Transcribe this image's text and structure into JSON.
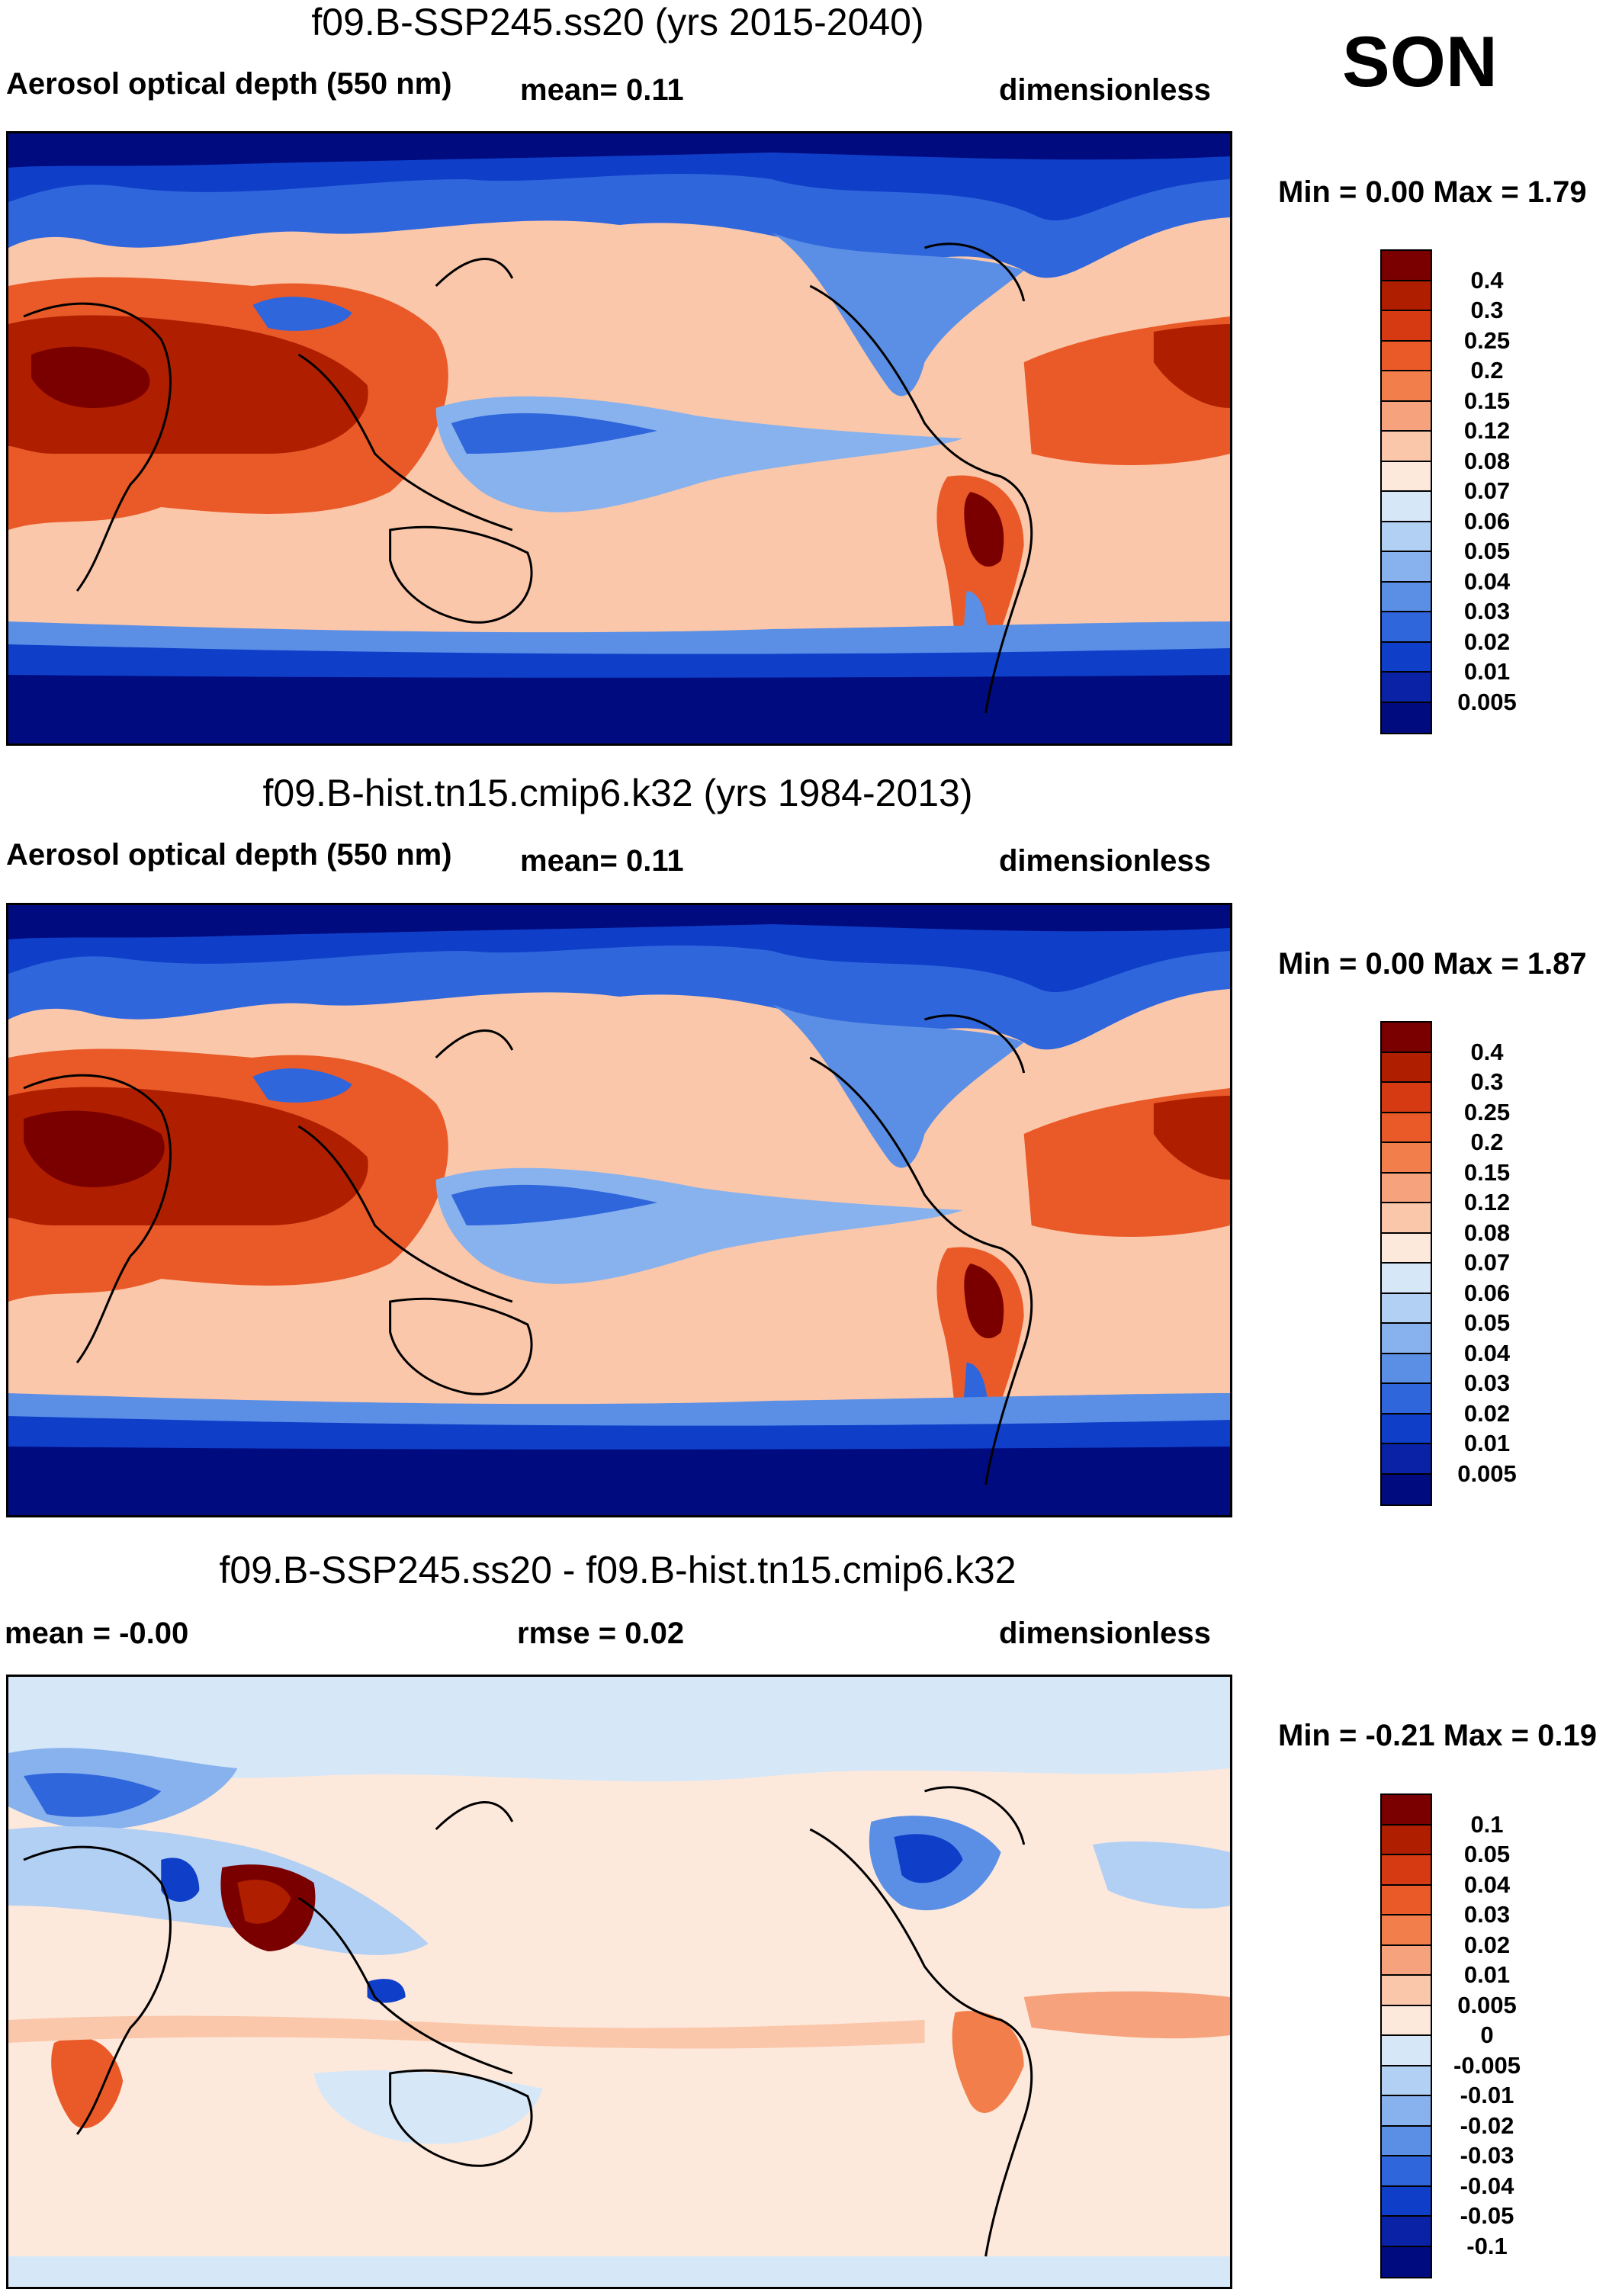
{
  "season": "SON",
  "panels": [
    {
      "id": "ssp245",
      "title": "f09.B-SSP245.ss20 (yrs 2015-2040)",
      "left_label": "Aerosol optical depth (550 nm)",
      "center_label": "mean=   0.11",
      "right_label": "dimensionless",
      "range": "Min =   0.00 Max =   1.79",
      "colorbar": {
        "labels": [
          "0.4",
          "0.3",
          "0.25",
          "0.2",
          "0.15",
          "0.12",
          "0.08",
          "0.07",
          "0.06",
          "0.05",
          "0.04",
          "0.03",
          "0.02",
          "0.01",
          "0.005"
        ],
        "colors": [
          "#7a0000",
          "#b01e00",
          "#d63a12",
          "#ea5a28",
          "#f27e4c",
          "#f6a27c",
          "#fbc7aa",
          "#fde9dc",
          "#d6e7f8",
          "#b2cff4",
          "#88b2ee",
          "#5b8fe6",
          "#2f66dc",
          "#0f3fc9",
          "#0a22a6",
          "#000b80"
        ]
      }
    },
    {
      "id": "hist",
      "title": "f09.B-hist.tn15.cmip6.k32 (yrs 1984-2013)",
      "left_label": "Aerosol optical depth (550 nm)",
      "center_label": "mean=   0.11",
      "right_label": "dimensionless",
      "range": "Min =   0.00 Max =   1.87",
      "colorbar": {
        "labels": [
          "0.4",
          "0.3",
          "0.25",
          "0.2",
          "0.15",
          "0.12",
          "0.08",
          "0.07",
          "0.06",
          "0.05",
          "0.04",
          "0.03",
          "0.02",
          "0.01",
          "0.005"
        ],
        "colors": [
          "#7a0000",
          "#b01e00",
          "#d63a12",
          "#ea5a28",
          "#f27e4c",
          "#f6a27c",
          "#fbc7aa",
          "#fde9dc",
          "#d6e7f8",
          "#b2cff4",
          "#88b2ee",
          "#5b8fe6",
          "#2f66dc",
          "#0f3fc9",
          "#0a22a6",
          "#000b80"
        ]
      }
    },
    {
      "id": "diff",
      "title": "f09.B-SSP245.ss20 - f09.B-hist.tn15.cmip6.k32",
      "left_label": "mean =  -0.00",
      "center_label": "rmse =   0.02",
      "right_label": "dimensionless",
      "range": "Min =  -0.21 Max =   0.19",
      "colorbar": {
        "labels": [
          "0.1",
          "0.05",
          "0.04",
          "0.03",
          "0.02",
          "0.01",
          "0.005",
          "0",
          "-0.005",
          "-0.01",
          "-0.02",
          "-0.03",
          "-0.04",
          "-0.05",
          "-0.1"
        ],
        "colors": [
          "#7a0000",
          "#b01e00",
          "#d63a12",
          "#ea5a28",
          "#f27e4c",
          "#f6a27c",
          "#fbc7aa",
          "#fde9dc",
          "#d6e7f8",
          "#b2cff4",
          "#88b2ee",
          "#5b8fe6",
          "#2f66dc",
          "#0f3fc9",
          "#0a22a6",
          "#000b80"
        ]
      }
    }
  ],
  "colors": {
    "deep_blue": "#000b80",
    "pale_orange": "#fbc7aa",
    "pale_blue": "#d6e7f8",
    "dark_red": "#7a0000"
  }
}
